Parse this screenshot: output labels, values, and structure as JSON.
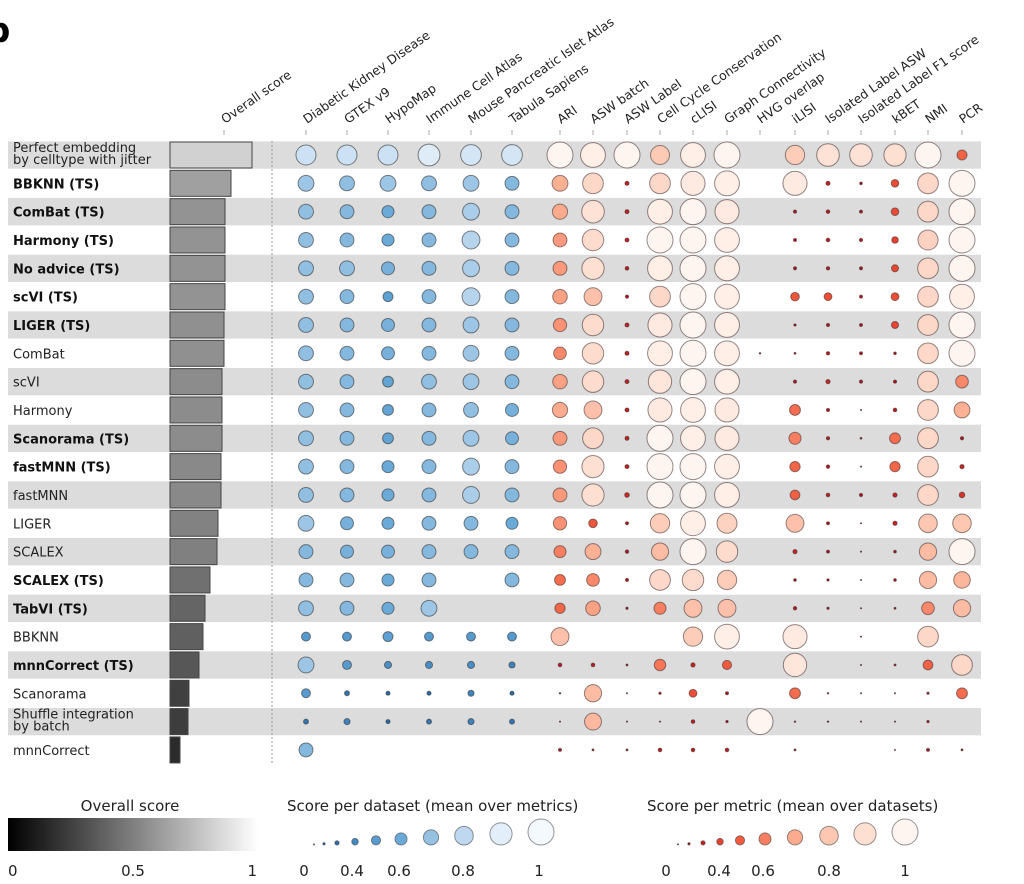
{
  "chart_data": {
    "type": "heatmap",
    "panel_label": "b",
    "overall_label": "Overall score",
    "datasets": [
      "Diabetic Kidney Disease",
      "GTEX v9",
      "HypoMap",
      "Immune Cell Atlas",
      "Mouse Pancreatic Islet Atlas",
      "Tabula Sapiens"
    ],
    "metrics": [
      "ARI",
      "ASW batch",
      "ASW Label",
      "Cell Cycle Conservation",
      "cLISI",
      "Graph Connectivity",
      "HVG overlap",
      "iLISI",
      "Isolated Label ASW",
      "Isolated Label F1 score",
      "kBET",
      "NMI",
      "PCR"
    ],
    "rows": [
      {
        "label": "Perfect embedding\nby celltype with jitter",
        "bold": false,
        "overall": 0.82,
        "dataset_scores": [
          0.84,
          0.84,
          0.84,
          0.89,
          0.86,
          0.86
        ],
        "metric_scores": [
          1,
          0.97,
          1,
          0.81,
          0.97,
          1,
          null,
          0.82,
          0.91,
          0.91,
          0.9,
          1,
          0.53
        ]
      },
      {
        "label": "BBKNN (TS)",
        "bold": true,
        "overall": 0.61,
        "dataset_scores": [
          0.72,
          0.69,
          0.72,
          0.69,
          0.72,
          0.66
        ],
        "metric_scores": [
          0.72,
          0.86,
          0.29,
          0.86,
          0.95,
          0.97,
          null,
          0.95,
          0.29,
          0.22,
          0.44,
          0.86,
          1
        ]
      },
      {
        "label": "ComBat (TS)",
        "bold": true,
        "overall": 0.55,
        "dataset_scores": [
          0.69,
          0.66,
          0.6,
          0.66,
          0.75,
          0.66
        ],
        "metric_scores": [
          0.7,
          0.91,
          0.29,
          0.97,
          1,
          0.95,
          null,
          0.25,
          0.27,
          0.24,
          0.44,
          0.86,
          1
        ]
      },
      {
        "label": "Harmony (TS)",
        "bold": true,
        "overall": 0.55,
        "dataset_scores": [
          0.69,
          0.66,
          0.6,
          0.66,
          0.78,
          0.66
        ],
        "metric_scores": [
          0.66,
          0.88,
          0.29,
          1,
          1,
          0.97,
          null,
          0.24,
          0.27,
          0.25,
          0.4,
          0.84,
          1
        ]
      },
      {
        "label": "No advice (TS)",
        "bold": true,
        "overall": 0.55,
        "dataset_scores": [
          0.69,
          0.69,
          0.63,
          0.66,
          0.75,
          0.66
        ],
        "metric_scores": [
          0.66,
          0.9,
          0.27,
          0.97,
          1,
          0.97,
          null,
          0.24,
          0.26,
          0.24,
          0.42,
          0.86,
          1
        ]
      },
      {
        "label": "scVI (TS)",
        "bold": true,
        "overall": 0.55,
        "dataset_scores": [
          0.69,
          0.66,
          0.53,
          0.66,
          0.78,
          0.66
        ],
        "metric_scores": [
          0.68,
          0.78,
          0.25,
          0.86,
          1,
          0.97,
          null,
          0.48,
          0.45,
          0.24,
          0.45,
          0.86,
          0.97
        ]
      },
      {
        "label": "LIGER (TS)",
        "bold": true,
        "overall": 0.54,
        "dataset_scores": [
          0.69,
          0.66,
          0.63,
          0.66,
          0.72,
          0.66
        ],
        "metric_scores": [
          0.64,
          0.88,
          0.29,
          0.95,
          1,
          0.97,
          null,
          0.2,
          0.25,
          0.24,
          0.42,
          0.86,
          1
        ]
      },
      {
        "label": "ComBat",
        "bold": false,
        "overall": 0.54,
        "dataset_scores": [
          0.69,
          0.66,
          0.63,
          0.66,
          0.72,
          0.66
        ],
        "metric_scores": [
          0.62,
          0.88,
          0.29,
          0.97,
          1,
          0.97,
          0.15,
          0.18,
          0.26,
          0.24,
          0.22,
          0.86,
          1
        ]
      },
      {
        "label": "scVI",
        "bold": false,
        "overall": 0.52,
        "dataset_scores": [
          0.69,
          0.66,
          0.56,
          0.69,
          0.72,
          0.66
        ],
        "metric_scores": [
          0.68,
          0.88,
          0.29,
          0.93,
          1,
          0.97,
          null,
          0.25,
          0.3,
          0.25,
          0.25,
          0.86,
          0.62
        ]
      },
      {
        "label": "Harmony",
        "bold": false,
        "overall": 0.52,
        "dataset_scores": [
          0.69,
          0.66,
          0.56,
          0.66,
          0.69,
          0.63
        ],
        "metric_scores": [
          0.7,
          0.78,
          0.29,
          0.95,
          0.97,
          0.95,
          null,
          0.56,
          0.25,
          0.1,
          0.27,
          0.86,
          0.72
        ]
      },
      {
        "label": "Scanorama (TS)",
        "bold": true,
        "overall": 0.52,
        "dataset_scores": [
          0.69,
          0.66,
          0.56,
          0.66,
          0.72,
          0.63
        ],
        "metric_scores": [
          0.66,
          0.86,
          0.29,
          1,
          0.97,
          0.95,
          null,
          0.6,
          0.25,
          0.17,
          0.56,
          0.86,
          0.25
        ]
      },
      {
        "label": "fastMNN (TS)",
        "bold": true,
        "overall": 0.51,
        "dataset_scores": [
          0.69,
          0.66,
          0.6,
          0.66,
          0.75,
          0.66
        ],
        "metric_scores": [
          0.64,
          0.9,
          0.29,
          1,
          1,
          0.97,
          null,
          0.54,
          0.26,
          0.1,
          0.54,
          0.86,
          0.3
        ]
      },
      {
        "label": "fastMNN",
        "bold": false,
        "overall": 0.51,
        "dataset_scores": [
          0.69,
          0.66,
          0.6,
          0.66,
          0.75,
          0.66
        ],
        "metric_scores": [
          0.66,
          0.9,
          0.32,
          1,
          1,
          0.97,
          null,
          0.52,
          0.27,
          0.25,
          0.3,
          0.86,
          0.36
        ]
      },
      {
        "label": "LIGER",
        "bold": false,
        "overall": 0.48,
        "dataset_scores": [
          0.72,
          0.63,
          0.6,
          0.66,
          0.66,
          0.6
        ],
        "metric_scores": [
          0.64,
          0.48,
          0.24,
          0.82,
          0.97,
          0.84,
          null,
          0.78,
          0.24,
          0.1,
          0.3,
          0.8,
          0.8
        ]
      },
      {
        "label": "SCALEX",
        "bold": false,
        "overall": 0.47,
        "dataset_scores": [
          0.66,
          0.63,
          0.63,
          0.66,
          0.66,
          0.66
        ],
        "metric_scores": [
          0.6,
          0.72,
          0.26,
          0.76,
          1,
          0.88,
          null,
          0.3,
          0.24,
          0.08,
          0.22,
          0.76,
          1
        ]
      },
      {
        "label": "SCALEX (TS)",
        "bold": true,
        "overall": 0.4,
        "dataset_scores": [
          0.66,
          0.66,
          0.6,
          0.66,
          null,
          0.66
        ],
        "metric_scores": [
          0.56,
          0.62,
          0.24,
          0.86,
          0.88,
          0.82,
          null,
          0.22,
          0.2,
          0.08,
          0.22,
          0.76,
          0.74
        ]
      },
      {
        "label": "TabVI (TS)",
        "bold": true,
        "overall": 0.35,
        "dataset_scores": [
          0.69,
          0.66,
          0.6,
          0.72,
          null,
          null
        ],
        "metric_scores": [
          0.54,
          0.68,
          0.2,
          0.6,
          0.78,
          0.78,
          null,
          0.26,
          0.2,
          0.08,
          0.18,
          0.62,
          0.76
        ]
      },
      {
        "label": "BBKNN",
        "bold": false,
        "overall": 0.33,
        "dataset_scores": [
          0.49,
          0.49,
          0.53,
          0.49,
          0.49,
          0.49
        ],
        "metric_scores": [
          0.78,
          null,
          null,
          null,
          0.82,
          0.97,
          null,
          0.95,
          null,
          0.08,
          null,
          0.86,
          null
        ]
      },
      {
        "label": "mnnCorrect (TS)",
        "bold": true,
        "overall": 0.29,
        "dataset_scores": [
          0.72,
          0.49,
          0.42,
          0.42,
          0.42,
          0.38
        ],
        "metric_scores": [
          0.27,
          0.27,
          0.18,
          0.58,
          0.3,
          0.5,
          null,
          0.93,
          null,
          0.08,
          0.18,
          0.52,
          0.86
        ]
      },
      {
        "label": "Scanorama",
        "bold": false,
        "overall": 0.19,
        "dataset_scores": [
          0.49,
          0.33,
          0.29,
          0.29,
          0.38,
          0.29
        ],
        "metric_scores": [
          0.15,
          0.76,
          0.1,
          0.2,
          0.45,
          0.24,
          null,
          0.56,
          0.15,
          0.05,
          0.05,
          0.2,
          0.56
        ]
      },
      {
        "label": "Shuffle integration\nby batch",
        "bold": false,
        "overall": 0.18,
        "dataset_scores": [
          0.33,
          0.38,
          0.29,
          0.33,
          0.38,
          0.33
        ],
        "metric_scores": [
          0.13,
          0.75,
          0.1,
          0.08,
          0.27,
          0.2,
          1,
          0.15,
          0.15,
          0.05,
          0.05,
          0.2,
          null
        ]
      },
      {
        "label": "mnnCorrect",
        "bold": false,
        "overall": 0.1,
        "dataset_scores": [
          0.66,
          null,
          null,
          null,
          null,
          null
        ],
        "metric_scores": [
          0.24,
          0.18,
          0.18,
          0.27,
          0.27,
          0.27,
          null,
          0.18,
          null,
          null,
          0.13,
          0.24,
          0.18
        ]
      }
    ],
    "legends": {
      "overall": {
        "title": "Overall score",
        "ticks": [
          "0",
          "0.5",
          "1"
        ],
        "range": [
          0,
          1
        ]
      },
      "dataset": {
        "title": "Score per dataset (mean over metrics)",
        "ticks": [
          "0",
          "0.4",
          "0.6",
          "0.8",
          "1"
        ],
        "dot_values": [
          0.1,
          0.2,
          0.3,
          0.4,
          0.5,
          0.6,
          0.7,
          0.8,
          0.9,
          1.0
        ]
      },
      "metric": {
        "title": "Score per metric (mean over datasets)",
        "ticks": [
          "0",
          "0.4",
          "0.6",
          "0.8",
          "1"
        ],
        "dot_values": [
          0.1,
          0.2,
          0.3,
          0.4,
          0.5,
          0.6,
          0.7,
          0.8,
          0.9,
          1.0
        ]
      }
    },
    "colors": {
      "row_band": "#dcdcdc",
      "dataset_scale": [
        "#1f5fa0",
        "#4a90c8",
        "#6aaad8",
        "#b5d3ec",
        "#f4f9fe"
      ],
      "metric_scale": [
        "#7f0000",
        "#b3141b",
        "#e8402c",
        "#f4694a",
        "#fcab8e",
        "#fdd5c4",
        "#fff5f0"
      ]
    }
  }
}
